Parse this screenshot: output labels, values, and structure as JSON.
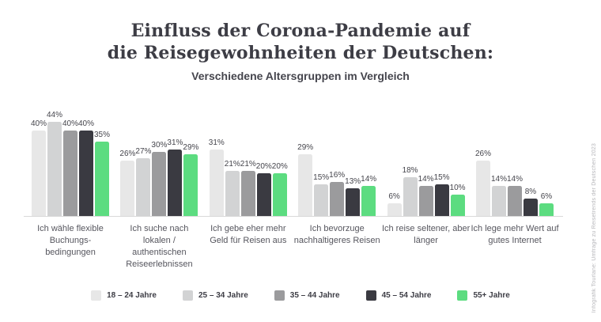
{
  "header": {
    "title_line1": "Einfluss der Corona-Pandemie auf",
    "title_line2": "die Reisegewohnheiten der Deutschen:",
    "subtitle": "Verschiedene Altersgruppen im Vergleich"
  },
  "chart_data": {
    "type": "bar",
    "title": "Einfluss der Corona-Pandemie auf die Reisegewohnheiten der Deutschen: Verschiedene Altersgruppen im Vergleich",
    "value_suffix": "%",
    "ylim": [
      0,
      50
    ],
    "grid": false,
    "legend_position": "bottom",
    "categories": [
      [
        "Ich wähle flexible",
        "Buchungs-",
        "bedingungen"
      ],
      [
        "Ich suche nach",
        "lokalen /",
        "authentischen",
        "Reiseerlebnissen"
      ],
      [
        "Ich gebe eher mehr",
        "Geld für Reisen aus"
      ],
      [
        "Ich bevorzuge",
        "nachhaltigeres Reisen"
      ],
      [
        "Ich reise seltener, aber",
        "länger"
      ],
      [
        "Ich lege mehr Wert auf",
        "gutes Internet"
      ]
    ],
    "series": [
      {
        "name": "18 – 24 Jahre",
        "color": "#e7e7e7",
        "values": [
          40,
          26,
          31,
          29,
          6,
          26
        ]
      },
      {
        "name": "25 – 34 Jahre",
        "color": "#d2d3d4",
        "values": [
          44,
          27,
          21,
          15,
          18,
          14
        ]
      },
      {
        "name": "35 – 44 Jahre",
        "color": "#9b9b9d",
        "values": [
          40,
          30,
          21,
          16,
          14,
          14
        ]
      },
      {
        "name": "45 – 54 Jahre",
        "color": "#3a3a41",
        "values": [
          40,
          31,
          20,
          13,
          15,
          8
        ]
      },
      {
        "name": "55+ Jahre",
        "color": "#5cdc80",
        "values": [
          35,
          29,
          20,
          14,
          10,
          6
        ]
      }
    ]
  },
  "source_note": "Infografik Tourlane: Umfrage zu Reisetrends der Deutschen 2023",
  "colors": {
    "title_text": "#3d3d45",
    "category_text": "#56565e",
    "value_text": "#45454c",
    "axis_line": "#d9d9d9",
    "background": "#ffffff",
    "accent_green": "#5cdc80"
  }
}
